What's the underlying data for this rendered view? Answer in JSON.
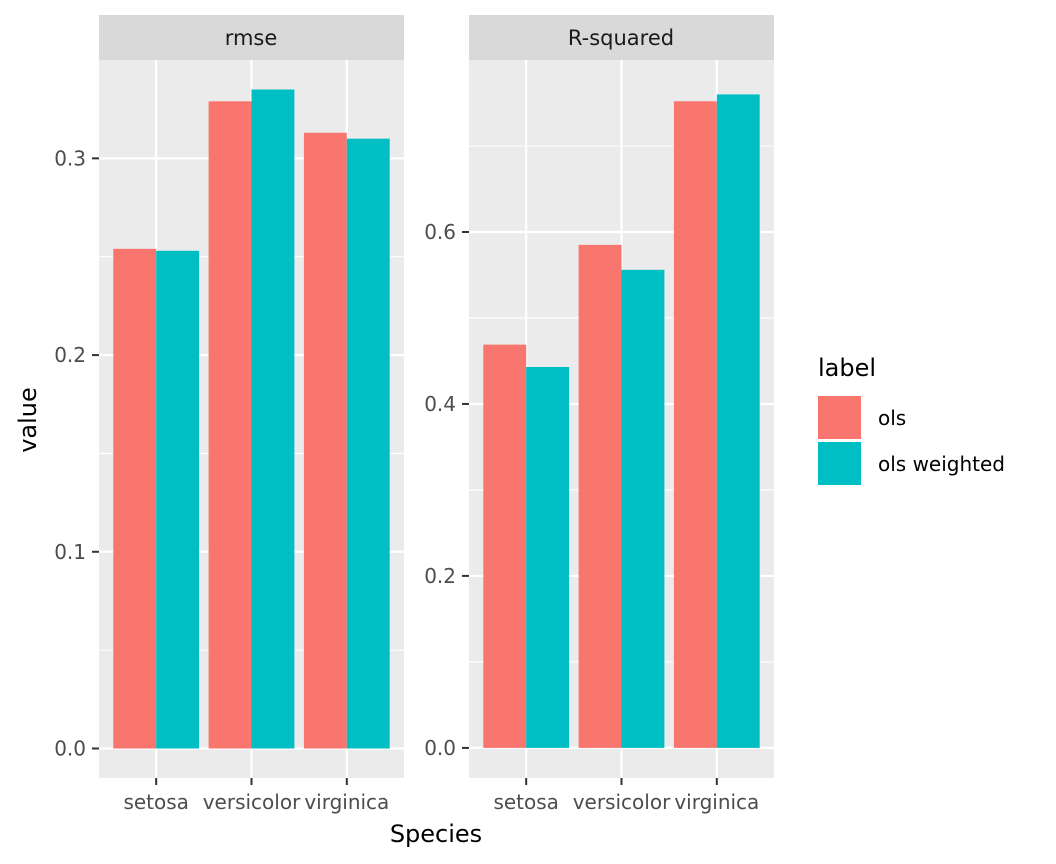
{
  "colors": {
    "panel_bg": "#ebebeb",
    "strip_bg": "#d9d9d9",
    "grid": "#ffffff",
    "tick": "#333333",
    "ols": "#f8766d",
    "ols_weighted": "#00bfc4"
  },
  "chart_data": {
    "type": "bar",
    "layout": "faceted grouped bar, free y scales",
    "xlabel": "Species",
    "ylabel": "value",
    "categories": [
      "setosa",
      "versicolor",
      "virginica"
    ],
    "legend": {
      "title": "label",
      "position": "right",
      "entries": [
        {
          "name": "ols",
          "color": "#f8766d"
        },
        {
          "name": "ols weighted",
          "color": "#00bfc4"
        }
      ]
    },
    "grid": true,
    "facets": [
      {
        "title": "rmse",
        "ylim": [
          -0.015,
          0.35
        ],
        "yticks": [
          0.0,
          0.1,
          0.2,
          0.3
        ],
        "ytick_labels": [
          "0.0",
          "0.1",
          "0.2",
          "0.3"
        ],
        "series": [
          {
            "name": "ols",
            "values": [
              0.254,
              0.329,
              0.313
            ]
          },
          {
            "name": "ols weighted",
            "values": [
              0.253,
              0.335,
              0.31
            ]
          }
        ]
      },
      {
        "title": "R-squared",
        "ylim": [
          -0.035,
          0.8
        ],
        "yticks": [
          0.0,
          0.2,
          0.4,
          0.6
        ],
        "ytick_labels": [
          "0.0",
          "0.2",
          "0.4",
          "0.6"
        ],
        "series": [
          {
            "name": "ols",
            "values": [
              0.469,
              0.585,
              0.752
            ]
          },
          {
            "name": "ols weighted",
            "values": [
              0.443,
              0.556,
              0.76
            ]
          }
        ]
      }
    ]
  }
}
